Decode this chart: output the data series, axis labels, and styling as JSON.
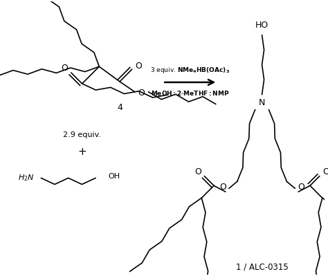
{
  "bg_color": "#ffffff",
  "line_color": "#000000",
  "lw": 1.2,
  "sl": 0.28,
  "arrow_text1": "3 equiv. NMe$_4$HB(OAc)$_3$",
  "arrow_text2": "MeOH : 2-MeTHF : NMP",
  "label_4": "4",
  "label_equiv": "2.9 equiv.",
  "label_plus": "+",
  "label_product": "1 / ALC-0315",
  "label_HO": "HO",
  "label_N": "N",
  "label_H2N": "H$_2$N",
  "label_OH": "OH",
  "label_O1": "O",
  "label_O2": "O",
  "label_O3": "O",
  "label_O4": "O"
}
